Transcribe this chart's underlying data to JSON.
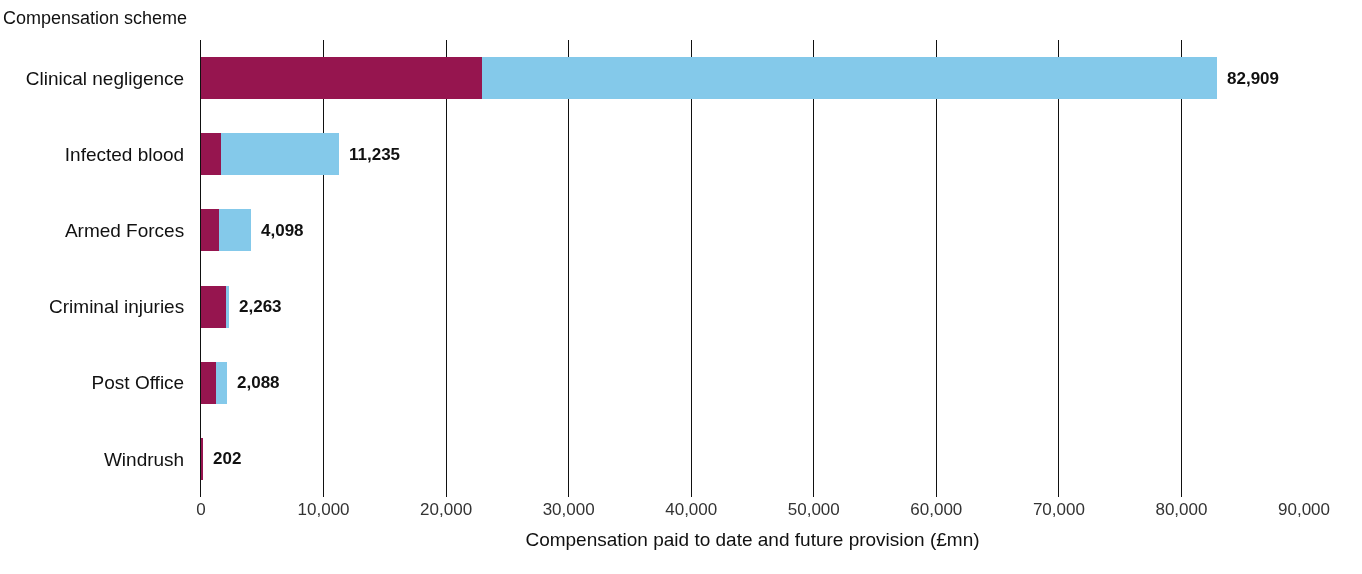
{
  "chart_data": {
    "type": "bar",
    "orientation": "horizontal",
    "stacked": true,
    "ylabel": "Compensation scheme",
    "xlabel": "Compensation paid to date and future provision (£mn)",
    "categories": [
      "Clinical negligence",
      "Infected blood",
      "Armed Forces",
      "Criminal injuries",
      "Post Office",
      "Windrush"
    ],
    "series": [
      {
        "color": "#96154f",
        "values": [
          22900,
          1600,
          1500,
          2000,
          1200,
          202
        ]
      },
      {
        "color": "#84c9ea",
        "values": [
          60009,
          9635,
          2598,
          263,
          888,
          0
        ]
      }
    ],
    "totals": [
      "82,909",
      "11,235",
      "4,098",
      "2,263",
      "2,088",
      "202"
    ],
    "xlim": [
      0,
      90000
    ],
    "xticks": [
      0,
      {
        "value": 10000,
        "label": "10,000"
      },
      {
        "value": 20000,
        "label": "20,000"
      },
      {
        "value": 30000,
        "label": "30,000"
      },
      {
        "value": 40000,
        "label": "40,000"
      },
      {
        "value": 50000,
        "label": "50,000"
      },
      {
        "value": 60000,
        "label": "60,000"
      },
      {
        "value": 70000,
        "label": "70,000"
      },
      {
        "value": 80000,
        "label": "80,000"
      },
      {
        "value": 90000,
        "label": "90,000"
      }
    ],
    "grid": "x"
  }
}
